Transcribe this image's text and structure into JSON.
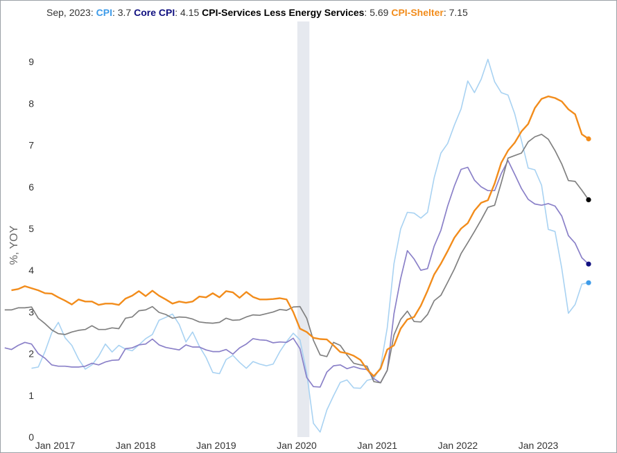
{
  "legend": {
    "date": "Sep, 2023",
    "entries": [
      {
        "name": "CPI",
        "value": "3.7",
        "color": "#3d9be9"
      },
      {
        "name": "Core CPI",
        "value": "4.15",
        "color": "#101080"
      },
      {
        "name": "CPI-Services Less Energy Services",
        "value": "5.69",
        "color": "#000000"
      },
      {
        "name": "CPI-Shelter",
        "value": "7.15",
        "color": "#f28c1b"
      }
    ]
  },
  "chart_data": {
    "type": "line",
    "title": "",
    "xlabel": "",
    "ylabel": "%, YOY",
    "ylim": [
      0,
      9.8
    ],
    "yticks": [
      0,
      1,
      2,
      3,
      4,
      5,
      6,
      7,
      8,
      9
    ],
    "x_start": "Dec 2016",
    "x_end": "Sep 2023",
    "x_ticks": [
      "Jan 2017",
      "Jan 2018",
      "Jan 2019",
      "Jan 2020",
      "Jan 2021",
      "Jan 2022",
      "Jan 2023"
    ],
    "recession_shading": {
      "from": "Feb 2020",
      "to": "Apr 2020",
      "color": "#e6e9ef"
    },
    "grid": false,
    "series": [
      {
        "name": "CPI",
        "color": "#a8d2f2",
        "end_marker_color": "#3d9be9",
        "values": [
          1.65,
          1.68,
          2.05,
          2.5,
          2.75,
          2.38,
          2.2,
          1.87,
          1.63,
          1.73,
          1.94,
          2.23,
          2.04,
          2.2,
          2.11,
          2.07,
          2.21,
          2.36,
          2.46,
          2.8,
          2.87,
          2.95,
          2.7,
          2.28,
          2.52,
          2.18,
          1.91,
          1.55,
          1.52,
          1.86,
          1.96,
          1.79,
          1.65,
          1.81,
          1.75,
          1.71,
          1.75,
          2.05,
          2.29,
          2.49,
          2.33,
          1.54,
          0.33,
          0.12,
          0.65,
          0.99,
          1.31,
          1.37,
          1.18,
          1.17,
          1.36,
          1.4,
          1.68,
          2.62,
          4.16,
          4.99,
          5.39,
          5.37,
          5.25,
          5.39,
          6.22,
          6.81,
          7.04,
          7.48,
          7.87,
          8.54,
          8.26,
          8.58,
          9.06,
          8.52,
          8.26,
          8.2,
          7.75,
          7.11,
          6.45,
          6.41,
          6.04,
          4.98,
          4.93,
          4.05,
          2.97,
          3.18,
          3.67,
          3.7
        ]
      },
      {
        "name": "Core CPI",
        "color": "#8a80c8",
        "end_marker_color": "#101080",
        "values": [
          2.14,
          2.1,
          2.2,
          2.27,
          2.23,
          2.0,
          1.89,
          1.73,
          1.7,
          1.7,
          1.68,
          1.68,
          1.7,
          1.77,
          1.73,
          1.8,
          1.84,
          1.85,
          2.12,
          2.14,
          2.21,
          2.23,
          2.35,
          2.21,
          2.15,
          2.12,
          2.09,
          2.21,
          2.16,
          2.16,
          2.09,
          2.05,
          2.05,
          2.1,
          1.99,
          2.14,
          2.23,
          2.36,
          2.33,
          2.32,
          2.26,
          2.28,
          2.27,
          2.37,
          2.12,
          1.43,
          1.21,
          1.2,
          1.56,
          1.71,
          1.73,
          1.64,
          1.69,
          1.64,
          1.62,
          1.4,
          1.3,
          1.6,
          2.96,
          3.8,
          4.47,
          4.27,
          4.0,
          4.04,
          4.58,
          4.96,
          5.54,
          6.02,
          6.42,
          6.47,
          6.16,
          6.0,
          5.91,
          5.91,
          6.32,
          6.63,
          6.3,
          5.96,
          5.7,
          5.59,
          5.56,
          5.6,
          5.54,
          5.3,
          4.83,
          4.65,
          4.3,
          4.15
        ]
      },
      {
        "name": "CPI-Services Less Energy Services",
        "color": "#808080",
        "end_marker_color": "#000000",
        "values": [
          3.05,
          3.05,
          3.1,
          3.1,
          3.12,
          2.85,
          2.72,
          2.57,
          2.48,
          2.46,
          2.52,
          2.56,
          2.58,
          2.67,
          2.58,
          2.58,
          2.62,
          2.6,
          2.85,
          2.88,
          3.03,
          3.05,
          3.13,
          2.99,
          2.94,
          2.85,
          2.88,
          2.87,
          2.83,
          2.76,
          2.74,
          2.73,
          2.75,
          2.85,
          2.8,
          2.81,
          2.88,
          2.93,
          2.92,
          2.96,
          3.0,
          3.06,
          3.04,
          3.12,
          3.13,
          2.85,
          2.32,
          1.97,
          1.93,
          2.27,
          2.2,
          1.97,
          1.77,
          1.73,
          1.7,
          1.33,
          1.3,
          1.6,
          2.45,
          2.82,
          3.02,
          2.77,
          2.76,
          2.94,
          3.27,
          3.4,
          3.71,
          4.03,
          4.4,
          4.66,
          4.93,
          5.21,
          5.51,
          5.56,
          6.1,
          6.69,
          6.75,
          6.81,
          7.08,
          7.2,
          7.26,
          7.14,
          6.87,
          6.55,
          6.15,
          6.13,
          5.92,
          5.69
        ]
      },
      {
        "name": "CPI-Shelter",
        "color": "#f28c1b",
        "end_marker_color": "#f28c1b",
        "values": [
          3.52,
          3.55,
          3.62,
          3.57,
          3.52,
          3.45,
          3.44,
          3.35,
          3.27,
          3.18,
          3.3,
          3.25,
          3.25,
          3.17,
          3.2,
          3.2,
          3.17,
          3.32,
          3.39,
          3.5,
          3.38,
          3.51,
          3.39,
          3.3,
          3.2,
          3.25,
          3.22,
          3.25,
          3.37,
          3.35,
          3.45,
          3.35,
          3.5,
          3.47,
          3.34,
          3.48,
          3.36,
          3.3,
          3.3,
          3.31,
          3.33,
          3.3,
          3.0,
          2.6,
          2.52,
          2.38,
          2.35,
          2.34,
          2.2,
          2.04,
          2.01,
          1.95,
          1.85,
          1.62,
          1.46,
          1.64,
          2.1,
          2.2,
          2.6,
          2.82,
          2.88,
          3.15,
          3.51,
          3.9,
          4.16,
          4.46,
          4.78,
          5.0,
          5.13,
          5.43,
          5.62,
          5.68,
          6.08,
          6.58,
          6.87,
          7.06,
          7.33,
          7.51,
          7.89,
          8.11,
          8.17,
          8.13,
          8.05,
          7.86,
          7.74,
          7.26,
          7.15
        ]
      }
    ]
  }
}
